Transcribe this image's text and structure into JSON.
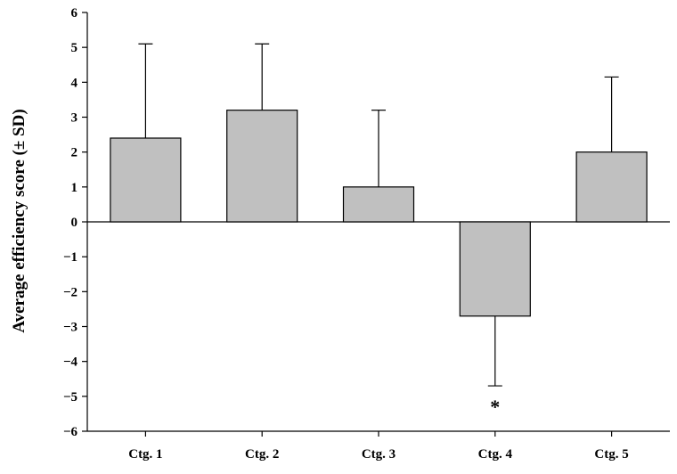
{
  "chart_data": {
    "type": "bar",
    "title": "",
    "xlabel": "",
    "ylabel": "Average efficiency score (± SD)",
    "ylim": [
      -6,
      6
    ],
    "yticks": [
      -6,
      -5,
      -4,
      -3,
      -2,
      -1,
      0,
      1,
      2,
      3,
      4,
      5,
      6
    ],
    "ytick_labels": [
      "−6",
      "−5",
      "−4",
      "−3",
      "−2",
      "−1",
      "0",
      "1",
      "2",
      "3",
      "4",
      "5",
      "6"
    ],
    "categories": [
      "Ctg. 1",
      "Ctg. 2",
      "Ctg. 3",
      "Ctg. 4",
      "Ctg. 5"
    ],
    "values": [
      2.4,
      3.2,
      1.0,
      -2.7,
      2.0
    ],
    "sd": [
      2.7,
      1.9,
      2.2,
      2.0,
      2.15
    ],
    "annotations": [
      {
        "category": "Ctg. 4",
        "text": "*"
      }
    ],
    "grid": false,
    "legend": "none",
    "bar_color": "#c0c0c0",
    "edge_color": "#000000"
  }
}
